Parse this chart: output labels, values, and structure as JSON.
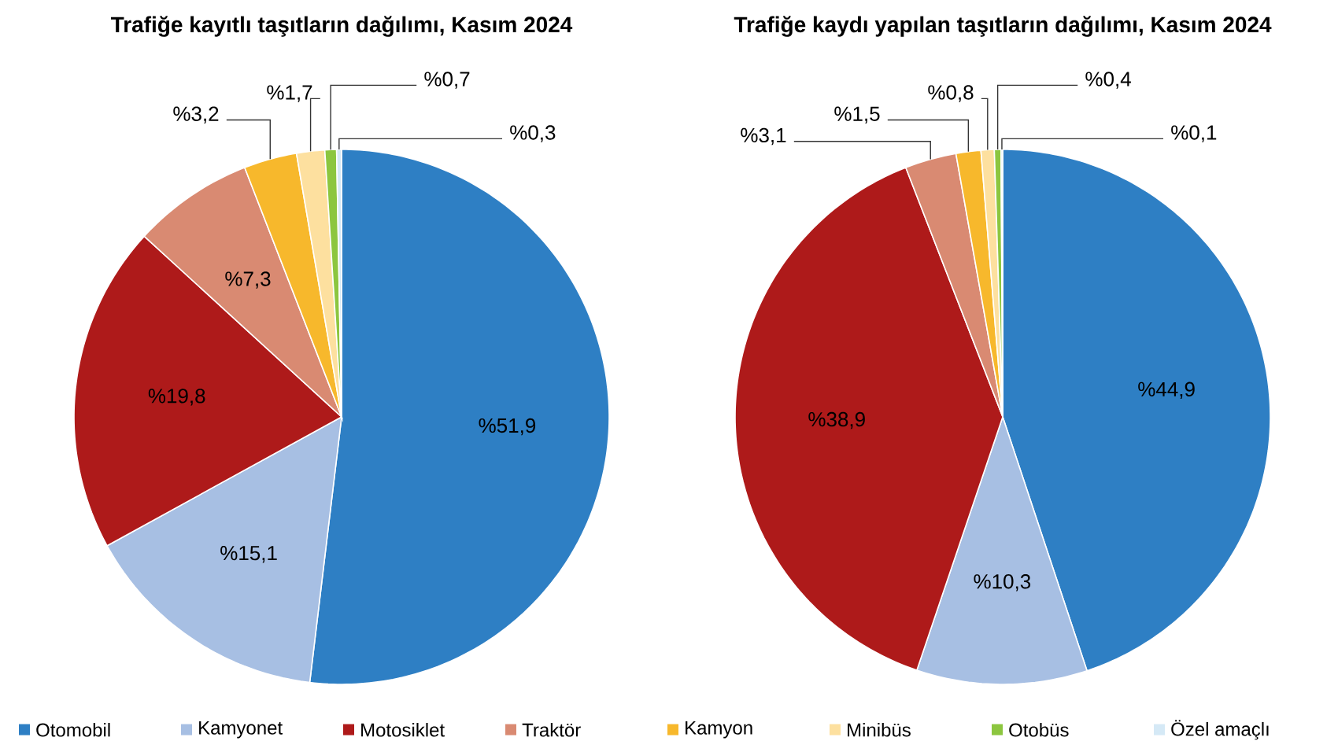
{
  "chart_data": [
    {
      "type": "pie",
      "title": "Trafiğe kayıtlı taşıtların dağılımı, Kasım 2024",
      "categories": [
        "Otomobil",
        "Kamyonet",
        "Motosiklet",
        "Traktör",
        "Kamyon",
        "Minibüs",
        "Otobüs",
        "Özel amaçlı"
      ],
      "values": [
        51.9,
        15.1,
        19.8,
        7.3,
        3.2,
        1.7,
        0.7,
        0.3
      ],
      "value_labels": [
        "%51,9",
        "%15,1",
        "%19,8",
        "%7,3",
        "%3,2",
        "%1,7",
        "%0,7",
        "%0,3"
      ],
      "colors": [
        "#2e7fc4",
        "#a7bfe3",
        "#ae1a1a",
        "#d98a72",
        "#f7b82c",
        "#fde09f",
        "#8cc63f",
        "#d5e9f6"
      ],
      "legend": "bottom"
    },
    {
      "type": "pie",
      "title": "Trafiğe kaydı yapılan taşıtların dağılımı, Kasım 2024",
      "categories": [
        null,
        null,
        null,
        null,
        null,
        null,
        null,
        null
      ],
      "values": [
        44.9,
        10.3,
        38.9,
        3.1,
        1.5,
        0.8,
        0.4,
        0.1
      ],
      "value_labels": [
        "%44,9",
        "%10,3",
        "%38,9",
        "%3,1",
        "%1,5",
        "%0,8",
        "%0,4",
        "%0,1"
      ],
      "colors": [
        "#2e7fc4",
        "#a7bfe3",
        "#ae1a1a",
        "#d98a72",
        "#f7b82c",
        "#fde09f",
        "#8cc63f",
        "#d5e9f6"
      ]
    }
  ]
}
